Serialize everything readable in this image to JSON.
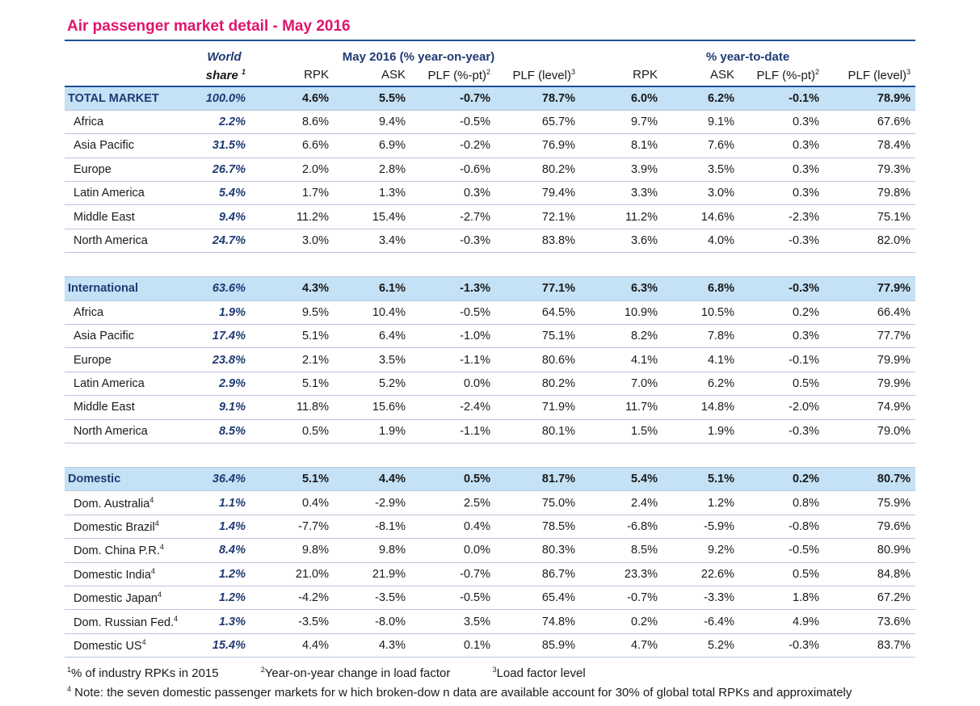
{
  "title": "Air passenger market detail - May 2016",
  "headers": {
    "world_line1": "World",
    "world_line2": "share",
    "world_sup": "1",
    "group_yoy": "May 2016 (% year-on-year)",
    "group_ytd": "% year-to-date",
    "rpk": "RPK",
    "ask": "ASK",
    "plf_pt": "PLF (%-pt)",
    "plf_pt_sup": "2",
    "plf_level": "PLF (level)",
    "plf_level_sup": "3"
  },
  "sections": [
    {
      "total": {
        "name": "TOTAL MARKET",
        "share": "100.0%",
        "v": [
          "4.6%",
          "5.5%",
          "-0.7%",
          "78.7%",
          "6.0%",
          "6.2%",
          "-0.1%",
          "78.9%"
        ]
      },
      "rows": [
        {
          "name": "Africa",
          "sup": "",
          "share": "2.2%",
          "v": [
            "8.6%",
            "9.4%",
            "-0.5%",
            "65.7%",
            "9.7%",
            "9.1%",
            "0.3%",
            "67.6%"
          ]
        },
        {
          "name": "Asia Pacific",
          "sup": "",
          "share": "31.5%",
          "v": [
            "6.6%",
            "6.9%",
            "-0.2%",
            "76.9%",
            "8.1%",
            "7.6%",
            "0.3%",
            "78.4%"
          ]
        },
        {
          "name": "Europe",
          "sup": "",
          "share": "26.7%",
          "v": [
            "2.0%",
            "2.8%",
            "-0.6%",
            "80.2%",
            "3.9%",
            "3.5%",
            "0.3%",
            "79.3%"
          ]
        },
        {
          "name": "Latin America",
          "sup": "",
          "share": "5.4%",
          "v": [
            "1.7%",
            "1.3%",
            "0.3%",
            "79.4%",
            "3.3%",
            "3.0%",
            "0.3%",
            "79.8%"
          ]
        },
        {
          "name": "Middle East",
          "sup": "",
          "share": "9.4%",
          "v": [
            "11.2%",
            "15.4%",
            "-2.7%",
            "72.1%",
            "11.2%",
            "14.6%",
            "-2.3%",
            "75.1%"
          ]
        },
        {
          "name": "North America",
          "sup": "",
          "share": "24.7%",
          "v": [
            "3.0%",
            "3.4%",
            "-0.3%",
            "83.8%",
            "3.6%",
            "4.0%",
            "-0.3%",
            "82.0%"
          ]
        }
      ]
    },
    {
      "total": {
        "name": "International",
        "share": "63.6%",
        "v": [
          "4.3%",
          "6.1%",
          "-1.3%",
          "77.1%",
          "6.3%",
          "6.8%",
          "-0.3%",
          "77.9%"
        ]
      },
      "rows": [
        {
          "name": "Africa",
          "sup": "",
          "share": "1.9%",
          "v": [
            "9.5%",
            "10.4%",
            "-0.5%",
            "64.5%",
            "10.9%",
            "10.5%",
            "0.2%",
            "66.4%"
          ]
        },
        {
          "name": "Asia Pacific",
          "sup": "",
          "share": "17.4%",
          "v": [
            "5.1%",
            "6.4%",
            "-1.0%",
            "75.1%",
            "8.2%",
            "7.8%",
            "0.3%",
            "77.7%"
          ]
        },
        {
          "name": "Europe",
          "sup": "",
          "share": "23.8%",
          "v": [
            "2.1%",
            "3.5%",
            "-1.1%",
            "80.6%",
            "4.1%",
            "4.1%",
            "-0.1%",
            "79.9%"
          ]
        },
        {
          "name": "Latin America",
          "sup": "",
          "share": "2.9%",
          "v": [
            "5.1%",
            "5.2%",
            "0.0%",
            "80.2%",
            "7.0%",
            "6.2%",
            "0.5%",
            "79.9%"
          ]
        },
        {
          "name": "Middle East",
          "sup": "",
          "share": "9.1%",
          "v": [
            "11.8%",
            "15.6%",
            "-2.4%",
            "71.9%",
            "11.7%",
            "14.8%",
            "-2.0%",
            "74.9%"
          ]
        },
        {
          "name": "North America",
          "sup": "",
          "share": "8.5%",
          "v": [
            "0.5%",
            "1.9%",
            "-1.1%",
            "80.1%",
            "1.5%",
            "1.9%",
            "-0.3%",
            "79.0%"
          ]
        }
      ]
    },
    {
      "total": {
        "name": "Domestic",
        "share": "36.4%",
        "v": [
          "5.1%",
          "4.4%",
          "0.5%",
          "81.7%",
          "5.4%",
          "5.1%",
          "0.2%",
          "80.7%"
        ]
      },
      "rows": [
        {
          "name": "Dom. Australia",
          "sup": "4",
          "share": "1.1%",
          "v": [
            "0.4%",
            "-2.9%",
            "2.5%",
            "75.0%",
            "2.4%",
            "1.2%",
            "0.8%",
            "75.9%"
          ]
        },
        {
          "name": "Domestic Brazil",
          "sup": "4",
          "share": "1.4%",
          "v": [
            "-7.7%",
            "-8.1%",
            "0.4%",
            "78.5%",
            "-6.8%",
            "-5.9%",
            "-0.8%",
            "79.6%"
          ]
        },
        {
          "name": "Dom. China P.R.",
          "sup": "4",
          "share": "8.4%",
          "v": [
            "9.8%",
            "9.8%",
            "0.0%",
            "80.3%",
            "8.5%",
            "9.2%",
            "-0.5%",
            "80.9%"
          ]
        },
        {
          "name": "Domestic India",
          "sup": "4",
          "share": "1.2%",
          "v": [
            "21.0%",
            "21.9%",
            "-0.7%",
            "86.7%",
            "23.3%",
            "22.6%",
            "0.5%",
            "84.8%"
          ]
        },
        {
          "name": "Domestic Japan",
          "sup": "4",
          "share": "1.2%",
          "v": [
            "-4.2%",
            "-3.5%",
            "-0.5%",
            "65.4%",
            "-0.7%",
            "-3.3%",
            "1.8%",
            "67.2%"
          ]
        },
        {
          "name": "Dom. Russian Fed.",
          "sup": "4",
          "share": "1.3%",
          "v": [
            "-3.5%",
            "-8.0%",
            "3.5%",
            "74.8%",
            "0.2%",
            "-6.4%",
            "4.9%",
            "73.6%"
          ]
        },
        {
          "name": "Domestic US",
          "sup": "4",
          "share": "15.4%",
          "v": [
            "4.4%",
            "4.3%",
            "0.1%",
            "85.9%",
            "4.7%",
            "5.2%",
            "-0.3%",
            "83.7%"
          ]
        }
      ]
    }
  ],
  "footnotes": {
    "f1_sup": "1",
    "f1": "% of industry RPKs in 2015",
    "f2_sup": "2",
    "f2": "Year-on-year change in load factor",
    "f3_sup": "3",
    "f3": "Load factor level",
    "f4_sup": "4",
    "f4": " Note: the seven domestic passenger markets for w hich broken-dow n data are available account for 30% of global total RPKs and approximately"
  }
}
